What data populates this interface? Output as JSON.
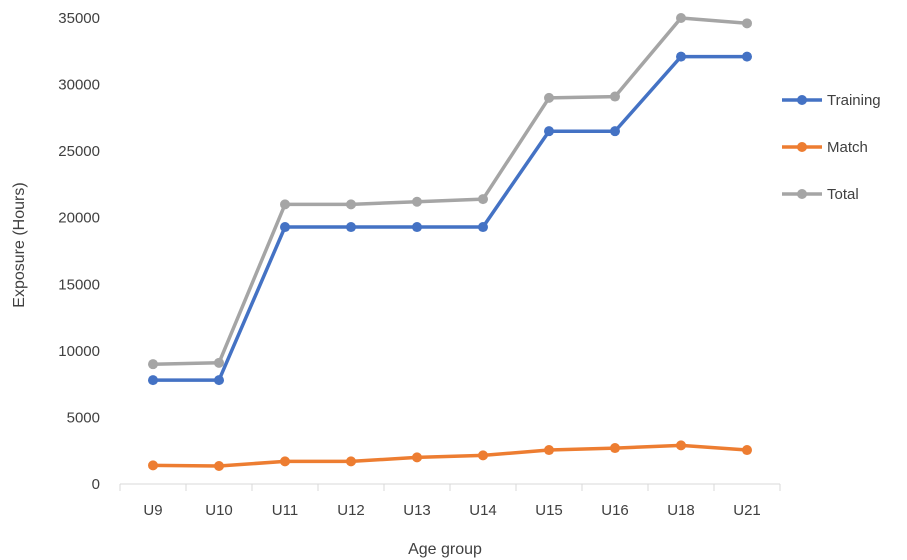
{
  "chart_data": {
    "type": "line",
    "title": "",
    "xlabel": "Age group",
    "ylabel": "Exposure  (Hours)",
    "categories": [
      "U9",
      "U10",
      "U11",
      "U12",
      "U13",
      "U14",
      "U15",
      "U16",
      "U18",
      "U21"
    ],
    "ylim": [
      0,
      35000
    ],
    "yticks": [
      0,
      5000,
      10000,
      15000,
      20000,
      25000,
      30000,
      35000
    ],
    "grid": false,
    "legend_position": "right",
    "series": [
      {
        "name": "Training",
        "color": "#4472c4",
        "values": [
          7800,
          7800,
          19300,
          19300,
          19300,
          19300,
          26500,
          26500,
          32100,
          32100
        ]
      },
      {
        "name": "Match",
        "color": "#ed7d31",
        "values": [
          1400,
          1350,
          1700,
          1700,
          2000,
          2150,
          2550,
          2700,
          2900,
          2550
        ]
      },
      {
        "name": "Total",
        "color": "#a5a5a5",
        "values": [
          9000,
          9100,
          21000,
          21000,
          21200,
          21400,
          29000,
          29100,
          35000,
          34600
        ]
      }
    ]
  }
}
